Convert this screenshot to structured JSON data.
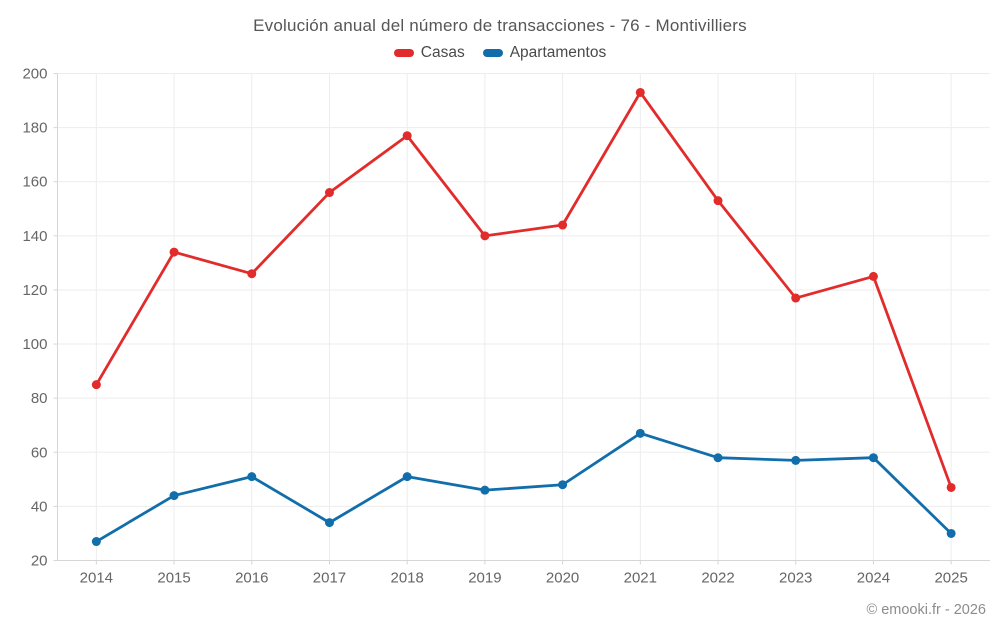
{
  "page": {
    "title": "Evolución anual del número de transacciones - 76 - Montivilliers",
    "footer": "© emooki.fr - 2026"
  },
  "legend": {
    "items": [
      {
        "label": "Casas",
        "color": "#e22c2c"
      },
      {
        "label": "Apartamentos",
        "color": "#116eaa"
      }
    ]
  },
  "colors": {
    "casas": "#e22c2c",
    "apartamentos": "#116eaa",
    "grid": "#ededed",
    "axis": "#d6d6d6",
    "tick_label": "#666666",
    "title_text": "#565656",
    "footer_text": "#8c8c8c"
  },
  "chart_data": {
    "type": "line",
    "title": "Evolución anual del número de transacciones - 76 - Montivilliers",
    "categories": [
      "2014",
      "2015",
      "2016",
      "2017",
      "2018",
      "2019",
      "2020",
      "2021",
      "2022",
      "2023",
      "2024",
      "2025"
    ],
    "series": [
      {
        "name": "Casas",
        "color": "#e22c2c",
        "values": [
          85,
          134,
          126,
          156,
          177,
          140,
          144,
          193,
          153,
          117,
          125,
          47
        ]
      },
      {
        "name": "Apartamentos",
        "color": "#116eaa",
        "values": [
          27,
          44,
          51,
          34,
          51,
          46,
          48,
          67,
          58,
          57,
          58,
          30
        ]
      }
    ],
    "xlabel": "",
    "ylabel": "",
    "ylim": [
      20,
      200
    ],
    "ytick_step": 20,
    "grid": true,
    "legend_position": "top",
    "markers": true
  }
}
